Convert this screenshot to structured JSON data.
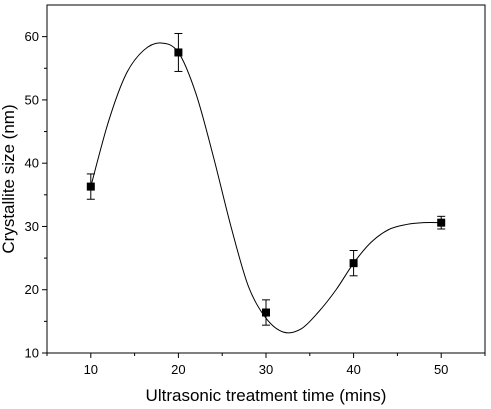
{
  "chart_data": {
    "type": "scatter",
    "title": "",
    "xlabel": "Ultrasonic treatment time (mins)",
    "ylabel": "Crystallite size (nm)",
    "xlim": [
      5,
      55
    ],
    "ylim": [
      10,
      65
    ],
    "x_ticks": [
      10,
      20,
      30,
      40,
      50
    ],
    "y_ticks": [
      10,
      20,
      30,
      40,
      50,
      60
    ],
    "grid": false,
    "legend": "none",
    "series": [
      {
        "x": [
          10,
          20,
          30,
          40,
          50
        ],
        "y": [
          36.3,
          57.5,
          16.4,
          24.2,
          30.6
        ],
        "error": [
          2.0,
          3.0,
          2.0,
          2.0,
          1.0
        ],
        "marker": "square",
        "color": "#000000"
      }
    ],
    "fit_curve": {
      "color": "#000000",
      "x": [
        10,
        12,
        14,
        16,
        18,
        20,
        22,
        24,
        26,
        28,
        30,
        32,
        34,
        36,
        38,
        40,
        42,
        44,
        46,
        48,
        50
      ],
      "y": [
        36.3,
        46.5,
        54.0,
        57.8,
        59.0,
        57.5,
        51.0,
        41.0,
        30.0,
        20.5,
        15.5,
        13.3,
        13.8,
        16.5,
        20.0,
        24.2,
        27.5,
        29.5,
        30.3,
        30.6,
        30.6
      ]
    }
  }
}
